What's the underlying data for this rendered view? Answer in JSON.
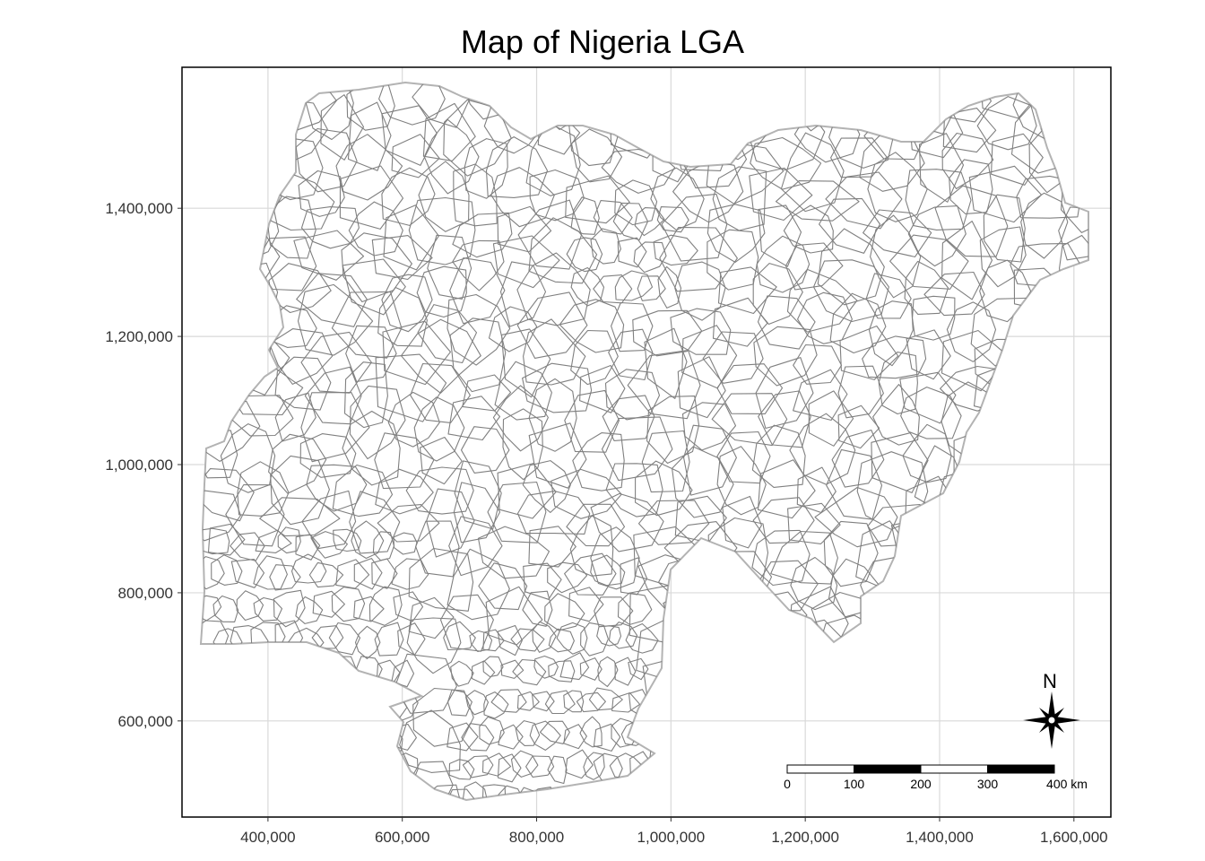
{
  "title": "Map of Nigeria LGA",
  "x_ticks": [
    "400,000",
    "600,000",
    "800,000",
    "1,000,000",
    "1,200,000",
    "1,400,000",
    "1,600,000"
  ],
  "y_ticks": [
    "1,400,000",
    "1,200,000",
    "1,000,000",
    "800,000",
    "600,000"
  ],
  "x_tick_values": [
    400000,
    600000,
    800000,
    1000000,
    1200000,
    1400000,
    1600000
  ],
  "y_tick_values": [
    1400000,
    1200000,
    1000000,
    800000,
    600000
  ],
  "xlim": [
    272000,
    1655000
  ],
  "ylim": [
    450000,
    1620000
  ],
  "scalebar": {
    "labels": [
      "0",
      "100",
      "200",
      "300",
      "400 km"
    ],
    "pattern": [
      "white",
      "black",
      "white",
      "black"
    ]
  },
  "north_arrow": {
    "label": "N"
  },
  "colors": {
    "grid": "#d9d9d9",
    "outline": "#b3b3b3",
    "lga_border": "#808080",
    "panel_border": "#000000"
  },
  "chart_data": {
    "type": "map",
    "title": "Map of Nigeria LGA",
    "xlabel": "",
    "ylabel": "",
    "x_ticks": [
      400000,
      600000,
      800000,
      1000000,
      1200000,
      1400000,
      1600000
    ],
    "y_ticks": [
      600000,
      800000,
      1000000,
      1200000,
      1400000
    ],
    "grid": true,
    "scalebar_km": [
      0,
      100,
      200,
      300,
      400
    ],
    "north_arrow": "bottom-right"
  }
}
